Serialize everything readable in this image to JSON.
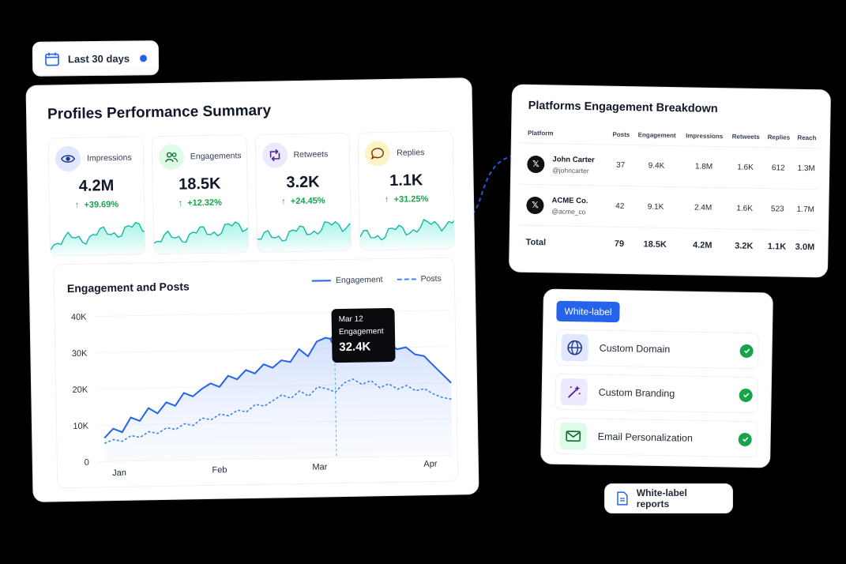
{
  "date_filter": {
    "label": "Last 30 days",
    "dot_color": "#2563eb"
  },
  "summary": {
    "title": "Profiles Performance Summary",
    "metrics": [
      {
        "label": "Impressions",
        "value": "4.2M",
        "change": "+39.69%",
        "icon": "eye-icon",
        "icon_bg": "#e0e7ff",
        "icon_color": "#1e3a8a"
      },
      {
        "label": "Engagements",
        "value": "18.5K",
        "change": "+12.32%",
        "icon": "users-icon",
        "icon_bg": "#dcfce7",
        "icon_color": "#166534"
      },
      {
        "label": "Retweets",
        "value": "3.2K",
        "change": "+24.45%",
        "icon": "retweet-icon",
        "icon_bg": "#ede9fe",
        "icon_color": "#4c1d95"
      },
      {
        "label": "Replies",
        "value": "1.1K",
        "change": "+31.25%",
        "icon": "chat-bubble-icon",
        "icon_bg": "#fef3c7",
        "icon_color": "#78350f"
      }
    ],
    "accent_green": "#16a34a"
  },
  "engagement_chart": {
    "title": "Engagement and Posts",
    "legend": {
      "engagement": "Engagement",
      "posts": "Posts"
    },
    "tooltip": {
      "date": "Mar 12",
      "label": "Engagement",
      "value": "32.4K"
    }
  },
  "chart_data": {
    "type": "line",
    "title": "Engagement and Posts",
    "y_ticks": [
      "40K",
      "30K",
      "20K",
      "10K",
      "0"
    ],
    "x_ticks": [
      "Jan",
      "Feb",
      "Mar",
      "Apr"
    ],
    "ylim": [
      0,
      40000
    ],
    "grid": true,
    "legend_position": "top-right",
    "series": [
      {
        "name": "Engagement",
        "style": "solid",
        "color": "#2563eb",
        "values": [
          6500,
          9000,
          8000,
          12000,
          11000,
          14500,
          13000,
          16000,
          15000,
          18500,
          17500,
          19500,
          21000,
          20000,
          23000,
          22000,
          24500,
          23500,
          26000,
          25000,
          27000,
          26500,
          30000,
          28000,
          32000,
          33000,
          32400,
          34500,
          33000,
          31000,
          32500,
          30500,
          31500,
          29500,
          30000,
          28000,
          27500,
          25000,
          22500,
          20000
        ]
      },
      {
        "name": "Posts",
        "style": "dashed",
        "color": "#3b82f6",
        "values": [
          5000,
          6000,
          5500,
          7000,
          6500,
          8000,
          7500,
          9000,
          8500,
          10000,
          9500,
          11500,
          11000,
          12500,
          12000,
          13500,
          13000,
          15000,
          14500,
          16000,
          17500,
          16500,
          18500,
          17000,
          19500,
          19000,
          18000,
          20500,
          21500,
          20000,
          21000,
          19000,
          20000,
          18500,
          19500,
          18000,
          18500,
          17000,
          16000,
          15500
        ]
      }
    ]
  },
  "platforms": {
    "title": "Platforms Engagement Breakdown",
    "columns": [
      "Platform",
      "Posts",
      "Engagement",
      "Impressions",
      "Retweets",
      "Replies",
      "Reach"
    ],
    "rows": [
      {
        "name": "John Carter",
        "handle": "@johncarter",
        "posts": "37",
        "engagement": "9.4K",
        "impressions": "1.8M",
        "retweets": "1.6K",
        "replies": "612",
        "reach": "1.3M"
      },
      {
        "name": "ACME Co.",
        "handle": "@acme_co",
        "posts": "42",
        "engagement": "9.1K",
        "impressions": "2.4M",
        "retweets": "1.6K",
        "replies": "523",
        "reach": "1.7M"
      }
    ],
    "total": {
      "label": "Total",
      "posts": "79",
      "engagement": "18.5K",
      "impressions": "4.2M",
      "retweets": "3.2K",
      "replies": "1.1K",
      "reach": "3.0M"
    }
  },
  "white_label": {
    "badge": "White-label",
    "badge_color": "#2563eb",
    "items": [
      {
        "label": "Custom Domain",
        "icon": "globe-icon",
        "icon_bg": "#e0e7ff"
      },
      {
        "label": "Custom Branding",
        "icon": "magic-wand-icon",
        "icon_bg": "#ede9fe"
      },
      {
        "label": "Email Personalization",
        "icon": "mail-icon",
        "icon_bg": "#dcfce7"
      }
    ]
  },
  "reports_pill": {
    "label": "White-label reports",
    "icon": "document-icon"
  }
}
